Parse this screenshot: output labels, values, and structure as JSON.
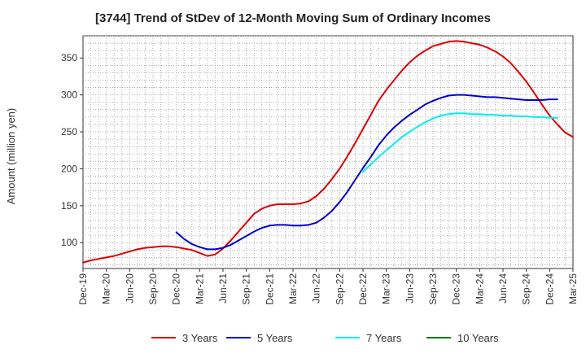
{
  "chart_data": {
    "type": "line",
    "title": "[3744]  Trend of StDev of 12-Month Moving Sum of Ordinary Incomes",
    "xlabel": "",
    "ylabel": "Amount (million yen)",
    "ylim": [
      65,
      380
    ],
    "yticks": [
      100,
      150,
      200,
      250,
      300,
      350
    ],
    "xticks": [
      "Dec-19",
      "Mar-20",
      "Jun-20",
      "Sep-20",
      "Dec-20",
      "Mar-21",
      "Jun-21",
      "Sep-21",
      "Dec-21",
      "Mar-22",
      "Jun-22",
      "Sep-22",
      "Dec-22",
      "Mar-23",
      "Jun-23",
      "Sep-23",
      "Dec-23",
      "Mar-24",
      "Jun-24",
      "Sep-24",
      "Dec-24",
      "Mar-25"
    ],
    "grid": true,
    "legend_position": "bottom",
    "series": [
      {
        "name": "3 Years",
        "color": "#dd0000",
        "start_index": 0,
        "values": [
          73,
          76,
          78,
          80,
          82,
          85,
          88,
          91,
          93,
          94,
          95,
          95,
          94,
          92,
          90,
          86,
          82,
          84,
          92,
          103,
          115,
          127,
          139,
          146,
          150,
          152,
          152,
          152,
          153,
          156,
          163,
          173,
          186,
          200,
          217,
          235,
          254,
          273,
          292,
          307,
          320,
          333,
          344,
          353,
          360,
          366,
          369,
          372,
          373,
          372,
          370,
          368,
          364,
          359,
          352,
          343,
          331,
          318,
          303,
          287,
          272,
          260,
          249,
          243
        ]
      },
      {
        "name": "5 Years",
        "color": "#0000cc",
        "start_index": 12,
        "values": [
          114,
          105,
          98,
          94,
          91,
          91,
          93,
          97,
          103,
          109,
          115,
          120,
          123,
          124,
          124,
          123,
          123,
          124,
          127,
          134,
          143,
          155,
          169,
          185,
          201,
          216,
          232,
          245,
          256,
          265,
          273,
          280,
          287,
          292,
          296,
          299,
          300,
          300,
          299,
          298,
          297,
          297,
          296,
          295,
          294,
          293,
          293,
          293,
          294,
          294
        ]
      },
      {
        "name": "7 Years",
        "color": "#00eeee",
        "start_index": 36,
        "values": [
          196,
          206,
          216,
          225,
          234,
          243,
          250,
          257,
          263,
          268,
          272,
          274,
          275,
          275,
          274,
          274,
          273,
          273,
          272,
          272,
          271,
          271,
          270,
          270,
          269,
          269
        ]
      },
      {
        "name": "10 Years",
        "color": "#007700",
        "start_index": 0,
        "values": []
      }
    ]
  }
}
